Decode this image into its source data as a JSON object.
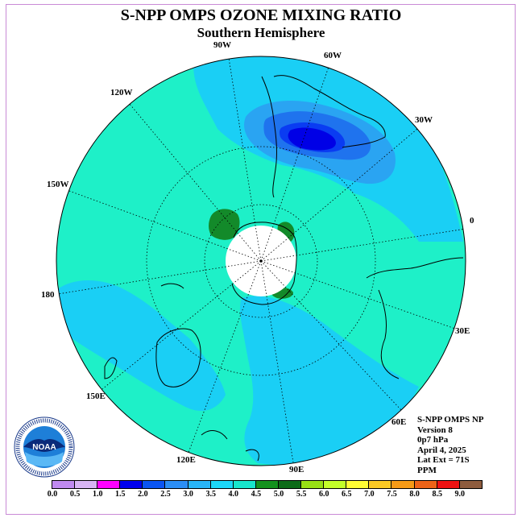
{
  "title": "S-NPP OMPS OZONE MIXING RATIO",
  "subtitle": "Southern Hemisphere",
  "longitude_labels": [
    "90W",
    "60W",
    "120W",
    "30W",
    "150W",
    "0",
    "180",
    "30E",
    "150E",
    "60E",
    "120E",
    "90E"
  ],
  "info": {
    "instrument": "S-NPP OMPS NP",
    "version": "Version 8",
    "pressure": "0p7 hPa",
    "date": "April 4, 2025",
    "lat_ext": "Lat Ext = 71S",
    "units": "PPM"
  },
  "logo": {
    "text": "NOAA",
    "icon": "noaa-logo-icon"
  },
  "colorbar": {
    "ticks": [
      "0.0",
      "0.5",
      "1.0",
      "1.5",
      "2.0",
      "2.5",
      "3.0",
      "3.5",
      "4.0",
      "4.5",
      "5.0",
      "5.5",
      "6.0",
      "6.5",
      "7.0",
      "7.5",
      "8.0",
      "8.5",
      "9.0"
    ],
    "colors": [
      "#c08af0",
      "#d8b4f4",
      "#ff00ff",
      "#0000ee",
      "#0b55f2",
      "#2b8ef5",
      "#29b5f8",
      "#1cd7f7",
      "#18e5cc",
      "#14911e",
      "#0d6b18",
      "#98e015",
      "#c3ff29",
      "#fffd34",
      "#fbc924",
      "#f59a16",
      "#ed6318",
      "#ee1212",
      "#8e5c3e"
    ]
  },
  "map": {
    "projection": "south-polar-stereographic",
    "hidden_region": "polar night (no data)",
    "graticule_latitudes": [
      -30,
      -60,
      -75
    ],
    "palette": {
      "background": "#1ef0c8",
      "band_3_5": "#1acff5",
      "band_3_0": "#2aa4f2",
      "band_2_5": "#1f73ee",
      "band_2_0": "#0a3cf2",
      "band_1_5": "#0000e6",
      "band_4_5": "#138a2a",
      "missing": "#ffffff"
    }
  }
}
